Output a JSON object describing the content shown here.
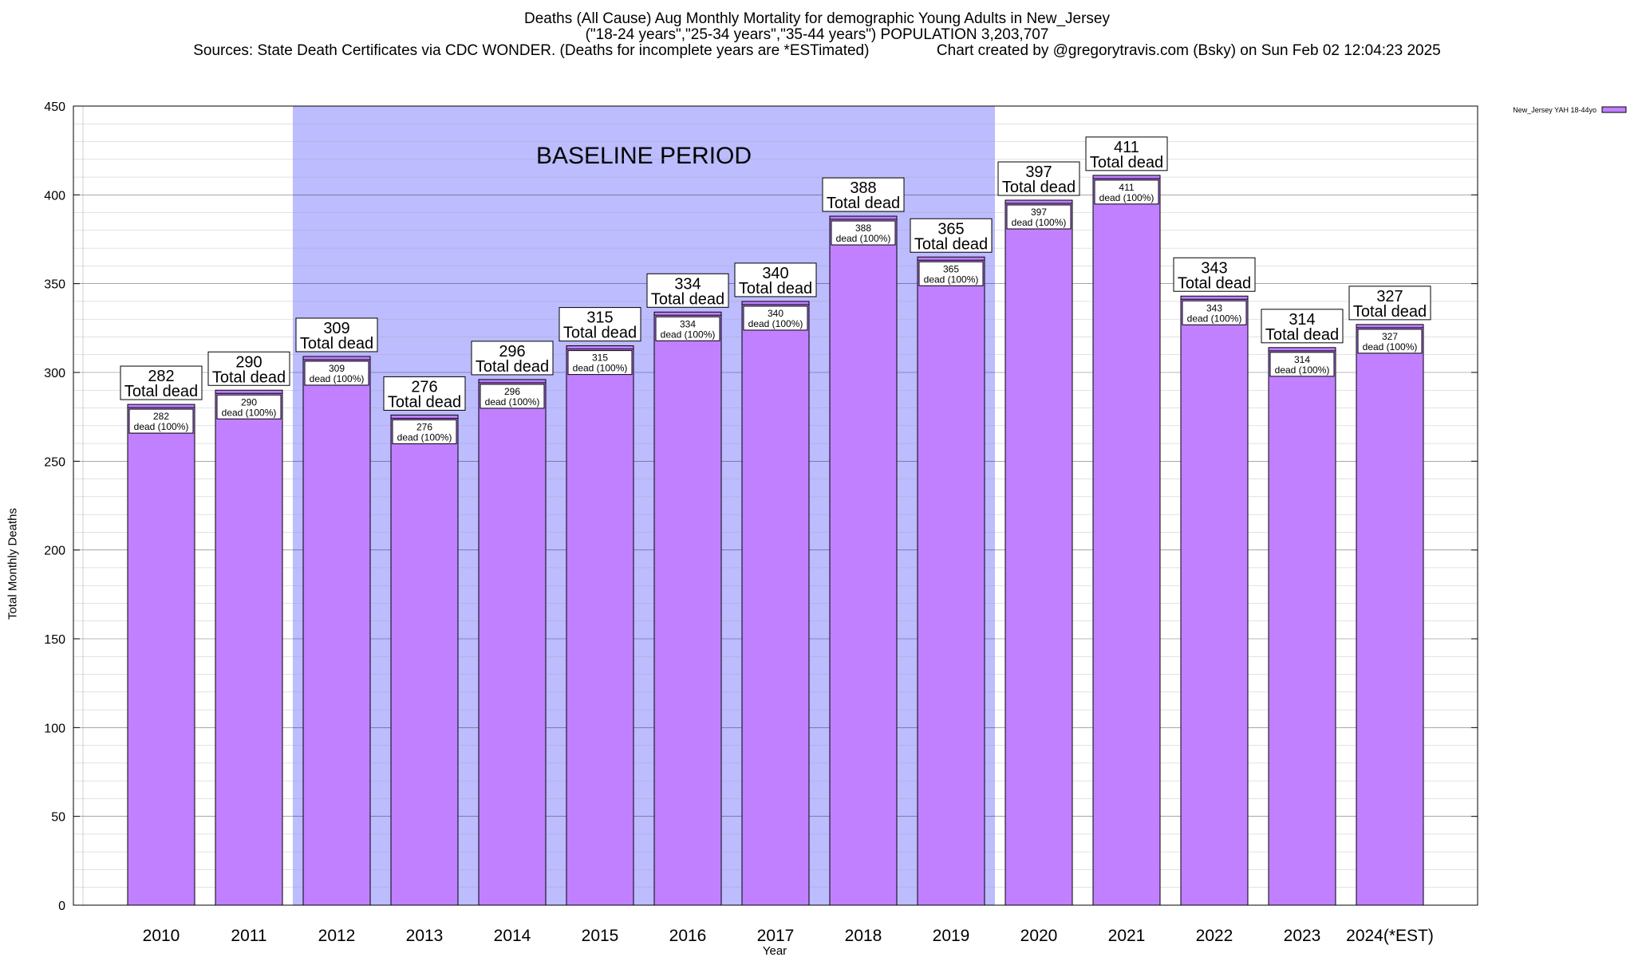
{
  "title": {
    "line1": "Deaths (All Cause) Aug Monthly Mortality for demographic Young Adults in New_Jersey",
    "line2": "(\"18-24 years\",\"25-34 years\",\"35-44 years\") POPULATION 3,203,707",
    "line3_left": "Sources: State Death Certificates via CDC WONDER. (Deaths for incomplete years are *ESTimated)",
    "line3_right": "Chart created by @gregorytravis.com (Bsky) on Sun Feb 02 12:04:23 2025"
  },
  "chart_data": {
    "type": "bar",
    "xlabel": "Year",
    "ylabel": "Total Monthly Deaths",
    "ylim": [
      0,
      450
    ],
    "yticks": [
      0,
      50,
      100,
      150,
      200,
      250,
      300,
      350,
      400,
      450
    ],
    "grid": true,
    "legend_position": "top-right",
    "categories": [
      "2010",
      "2011",
      "2012",
      "2013",
      "2014",
      "2015",
      "2016",
      "2017",
      "2018",
      "2019",
      "2020",
      "2021",
      "2022",
      "2023",
      "2024(*EST)"
    ],
    "series": [
      {
        "name": "New_Jersey YAH 18-44yo",
        "values": [
          282,
          290,
          309,
          276,
          296,
          315,
          334,
          340,
          388,
          365,
          397,
          411,
          343,
          314,
          327
        ]
      }
    ],
    "total_label_text": "Total dead",
    "inner_label_text": "dead (100%)",
    "baseline": {
      "label": "BASELINE PERIOD",
      "from": "2012",
      "to": "2019"
    }
  },
  "colors": {
    "bar": "#c080ff",
    "baseline_shade": "#bcbcff",
    "grid": "#a0a0a0"
  }
}
